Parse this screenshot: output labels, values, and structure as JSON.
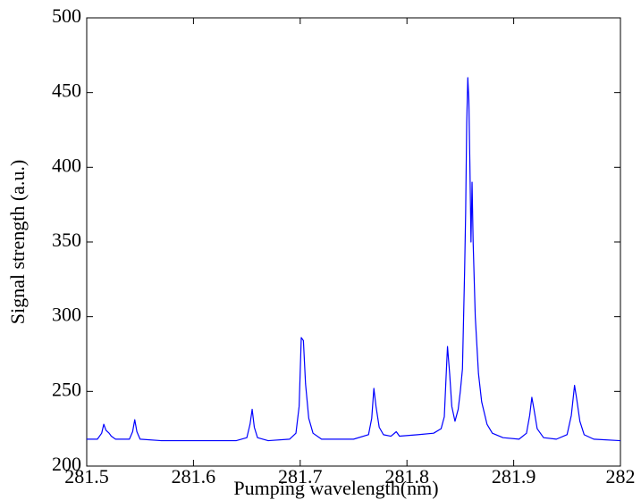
{
  "chart_data": {
    "type": "line",
    "xlabel": "Pumping wavelength(nm)",
    "ylabel": "Signal strength (a.u.)",
    "color": "#0000ff",
    "x": [
      281.5,
      281.51,
      281.514,
      281.516,
      281.518,
      281.521,
      281.523,
      281.527,
      281.54,
      281.543,
      281.545,
      281.547,
      281.55,
      281.57,
      281.6,
      281.64,
      281.65,
      281.653,
      281.655,
      281.657,
      281.66,
      281.67,
      281.69,
      281.696,
      281.699,
      281.701,
      281.703,
      281.705,
      281.708,
      281.712,
      281.72,
      281.75,
      281.764,
      281.767,
      281.769,
      281.771,
      281.774,
      281.778,
      281.785,
      281.79,
      281.793,
      281.81,
      281.825,
      281.832,
      281.835,
      281.837,
      281.838,
      281.84,
      281.842,
      281.845,
      281.848,
      281.85,
      281.852,
      281.854,
      281.855,
      281.856,
      281.857,
      281.858,
      281.859,
      281.86,
      281.861,
      281.862,
      281.864,
      281.867,
      281.87,
      281.875,
      281.88,
      281.89,
      281.905,
      281.912,
      281.915,
      281.917,
      281.919,
      281.922,
      281.928,
      281.94,
      281.95,
      281.954,
      281.957,
      281.959,
      281.962,
      281.966,
      281.975,
      282
    ],
    "values": [
      218,
      218,
      222,
      228,
      224,
      222,
      220,
      218,
      218,
      223,
      231,
      223,
      218,
      217,
      217,
      217,
      219,
      228,
      238,
      226,
      219,
      217,
      218,
      222,
      240,
      286,
      284,
      255,
      232,
      222,
      218,
      218,
      221,
      232,
      252,
      240,
      226,
      221,
      220,
      223,
      220,
      221,
      222,
      225,
      233,
      265,
      280,
      262,
      240,
      230,
      238,
      250,
      265,
      330,
      370,
      430,
      460,
      445,
      400,
      350,
      390,
      350,
      300,
      262,
      243,
      228,
      222,
      219,
      218,
      222,
      234,
      246,
      238,
      225,
      219,
      218,
      221,
      234,
      254,
      245,
      230,
      221,
      218,
      217
    ],
    "xlim": [
      281.5,
      282
    ],
    "xticks": [
      281.5,
      281.6,
      281.7,
      281.8,
      281.9,
      282
    ],
    "ylim": [
      200,
      500
    ],
    "yticks": [
      200,
      250,
      300,
      350,
      400,
      450,
      500
    ]
  }
}
